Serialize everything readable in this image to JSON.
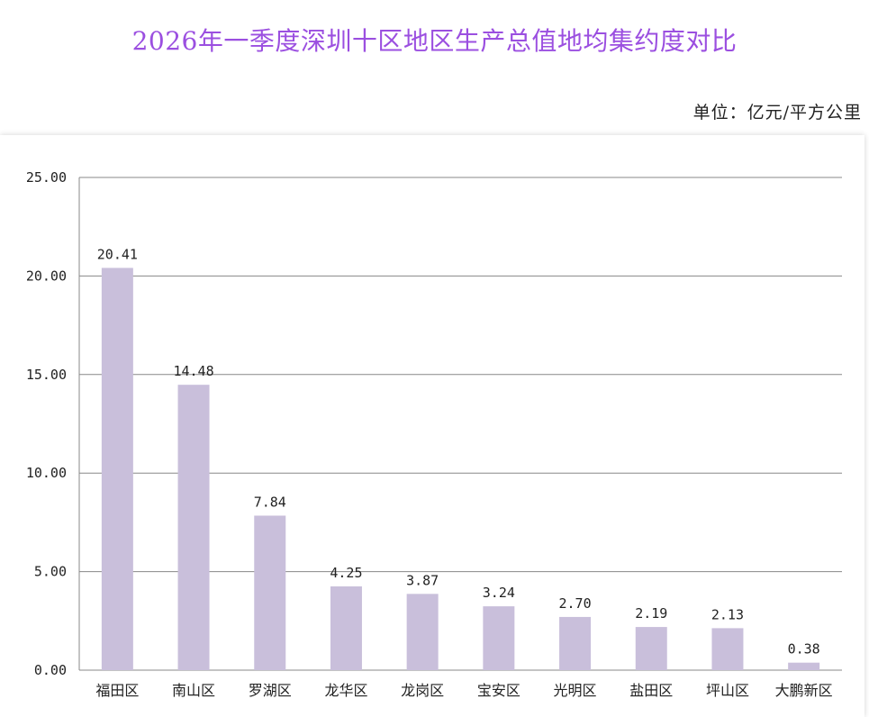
{
  "title": "2026年一季度深圳十区地区生产总值地均集约度对比",
  "unit_label": "单位：亿元/平方公里",
  "colors": {
    "title": "#9b4fe0",
    "bar": "#c9bfdb",
    "grid": "#888888"
  },
  "chart_data": {
    "type": "bar",
    "categories": [
      "福田区",
      "南山区",
      "罗湖区",
      "龙华区",
      "龙岗区",
      "宝安区",
      "光明区",
      "盐田区",
      "坪山区",
      "大鹏新区"
    ],
    "values": [
      20.41,
      14.48,
      7.84,
      4.25,
      3.87,
      3.24,
      2.7,
      2.19,
      2.13,
      0.38
    ],
    "value_labels": [
      "20.41",
      "14.48",
      "7.84",
      "4.25",
      "3.87",
      "3.24",
      "2.70",
      "2.19",
      "2.13",
      "0.38"
    ],
    "yticks": [
      "0.00",
      "5.00",
      "10.00",
      "15.00",
      "20.00",
      "25.00"
    ],
    "ytick_values": [
      0,
      5,
      10,
      15,
      20,
      25
    ],
    "ylim": [
      0,
      25
    ],
    "grid": true,
    "legend": "none"
  }
}
